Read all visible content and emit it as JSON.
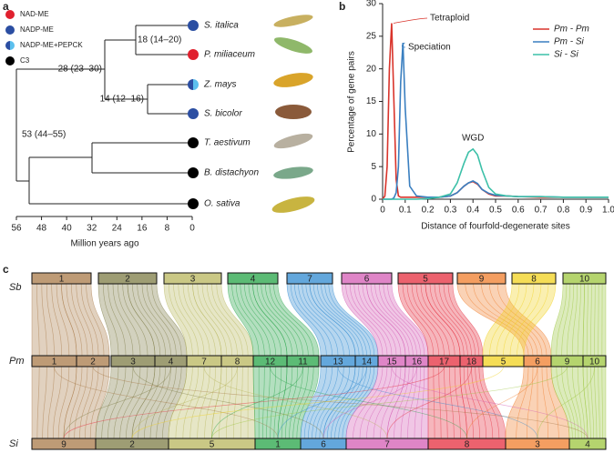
{
  "panel_a": {
    "label": "a",
    "legend": [
      {
        "label": "NAD-ME",
        "colors": [
          "#e0202e"
        ]
      },
      {
        "label": "NADP-ME",
        "colors": [
          "#2b4ea2"
        ]
      },
      {
        "label": "NADP-ME+PEPCK",
        "colors": [
          "#2b4ea2",
          "#5cc0ee"
        ]
      },
      {
        "label": "C3",
        "colors": [
          "#000000"
        ]
      }
    ],
    "species": [
      {
        "name": "S. italica",
        "colors": [
          "#2b4ea2"
        ],
        "label_color": "#222222"
      },
      {
        "name": "P. miliaceum",
        "colors": [
          "#e0202e"
        ],
        "label_color": "#e0202e"
      },
      {
        "name": "Z. mays",
        "colors": [
          "#2b4ea2",
          "#5cc0ee"
        ],
        "label_color": "#222222"
      },
      {
        "name": "S. bicolor",
        "colors": [
          "#2b4ea2"
        ],
        "label_color": "#222222"
      },
      {
        "name": "T. aestivum",
        "colors": [
          "#000000"
        ],
        "label_color": "#222222"
      },
      {
        "name": "B. distachyon",
        "colors": [
          "#000000"
        ],
        "label_color": "#222222"
      },
      {
        "name": "O. sativa",
        "colors": [
          "#000000"
        ],
        "label_color": "#222222"
      }
    ],
    "node_labels": [
      "18 (14–20)",
      "28 (23–30)",
      "14 (12–16)",
      "53 (44–55)"
    ],
    "axis_ticks": [
      56,
      48,
      40,
      32,
      24,
      16,
      8,
      0
    ],
    "axis_label": "Million years ago"
  },
  "chart_data": {
    "type": "line",
    "label": "b",
    "x_label": "Distance of fourfold-degenerate sites",
    "y_label": "Percentage of gene pairs",
    "x": [
      0,
      0.01,
      0.02,
      0.03,
      0.04,
      0.05,
      0.06,
      0.07,
      0.08,
      0.09,
      0.1,
      0.12,
      0.15,
      0.2,
      0.25,
      0.3,
      0.33,
      0.36,
      0.38,
      0.4,
      0.42,
      0.44,
      0.47,
      0.5,
      0.55,
      0.6,
      0.7,
      0.8,
      0.9,
      1
    ],
    "series": [
      {
        "name": "Pm - Pm",
        "color": "#d9342b",
        "values": [
          0,
          0.5,
          5,
          20,
          27,
          15,
          3,
          0.5,
          0.3,
          0.3,
          0.3,
          0.3,
          0.3,
          0.3,
          0.3,
          0.5,
          1,
          2,
          2.5,
          2.7,
          2.3,
          1.5,
          0.8,
          0.5,
          0.5,
          0.4,
          0.3,
          0.3,
          0.3,
          0.3
        ]
      },
      {
        "name": "Pm - Si",
        "color": "#3a7fc0",
        "values": [
          0,
          0,
          0,
          0,
          0,
          0.2,
          1,
          5,
          18,
          24,
          14,
          2,
          0.5,
          0.3,
          0.3,
          0.5,
          1,
          2,
          2.5,
          2.8,
          2.4,
          1.5,
          0.9,
          0.6,
          0.5,
          0.4,
          0.4,
          0.3,
          0.3,
          0.3
        ]
      },
      {
        "name": "Si - Si",
        "color": "#3cc0a8",
        "values": [
          0,
          0,
          0,
          0,
          0,
          0,
          0,
          0,
          0,
          0,
          0,
          0,
          0,
          0.1,
          0.3,
          0.8,
          2.5,
          5.5,
          7.2,
          7.7,
          6.8,
          4.5,
          1.8,
          0.8,
          0.5,
          0.4,
          0.4,
          0.3,
          0.3,
          0.3
        ]
      }
    ],
    "annotations": [
      {
        "text": "Tetraploid",
        "color": "#d9342b"
      },
      {
        "text": "Speciation",
        "color": "#3a7fc0"
      },
      {
        "text": "WGD",
        "color": "#3cc0a8"
      }
    ],
    "xlim": [
      0,
      1
    ],
    "ylim": [
      0,
      30
    ],
    "xticks": [
      0,
      0.1,
      0.2,
      0.3,
      0.4,
      0.5,
      0.6,
      0.7,
      0.8,
      0.9,
      {
        "value": 1,
        "label": "1.0"
      }
    ],
    "yticks": [
      0,
      5,
      10,
      15,
      20,
      25,
      30
    ],
    "legend": "upper right"
  },
  "panel_c": {
    "label": "c",
    "rows": [
      {
        "name": "Sb",
        "blocks": [
          {
            "label": "1",
            "color": "#a87a48"
          },
          {
            "label": "2",
            "color": "#7d7c46"
          },
          {
            "label": "3",
            "color": "#b8b65c"
          },
          {
            "label": "4",
            "color": "#26a447"
          },
          {
            "label": "7",
            "color": "#2f8ad0"
          },
          {
            "label": "6",
            "color": "#d45cb4"
          },
          {
            "label": "5",
            "color": "#e52d3e"
          },
          {
            "label": "9",
            "color": "#f07d2c"
          },
          {
            "label": "8",
            "color": "#f2d21e"
          },
          {
            "label": "10",
            "color": "#9cc63e"
          }
        ]
      },
      {
        "name": "Pm",
        "blocks": [
          {
            "label": "1",
            "color": "#a87a48"
          },
          {
            "label": "2",
            "color": "#a87a48"
          },
          {
            "label": "3",
            "color": "#7d7c46"
          },
          {
            "label": "4",
            "color": "#7d7c46"
          },
          {
            "label": "7",
            "color": "#b8b65c"
          },
          {
            "label": "8",
            "color": "#b8b65c"
          },
          {
            "label": "12",
            "color": "#26a447"
          },
          {
            "label": "11",
            "color": "#26a447"
          },
          {
            "label": "13",
            "color": "#2f8ad0"
          },
          {
            "label": "14",
            "color": "#2f8ad0"
          },
          {
            "label": "15",
            "color": "#d45cb4"
          },
          {
            "label": "16",
            "color": "#d45cb4"
          },
          {
            "label": "17",
            "color": "#e52d3e"
          },
          {
            "label": "18",
            "color": "#e52d3e"
          },
          {
            "label": "5",
            "color": "#f2d21e"
          },
          {
            "label": "6",
            "color": "#f07d2c"
          },
          {
            "label": "9",
            "color": "#9cc63e"
          },
          {
            "label": "10",
            "color": "#9cc63e"
          }
        ]
      },
      {
        "name": "Si",
        "blocks": [
          {
            "label": "9",
            "color": "#a87a48"
          },
          {
            "label": "2",
            "color": "#7d7c46"
          },
          {
            "label": "5",
            "color": "#b8b65c"
          },
          {
            "label": "1",
            "color": "#26a447"
          },
          {
            "label": "6",
            "color": "#2f8ad0"
          },
          {
            "label": "7",
            "color": "#d45cb4"
          },
          {
            "label": "8",
            "color": "#e52d3e"
          },
          {
            "label": "3",
            "color": "#f07d2c"
          },
          {
            "label": "4",
            "color": "#9cc63e"
          }
        ]
      }
    ]
  }
}
